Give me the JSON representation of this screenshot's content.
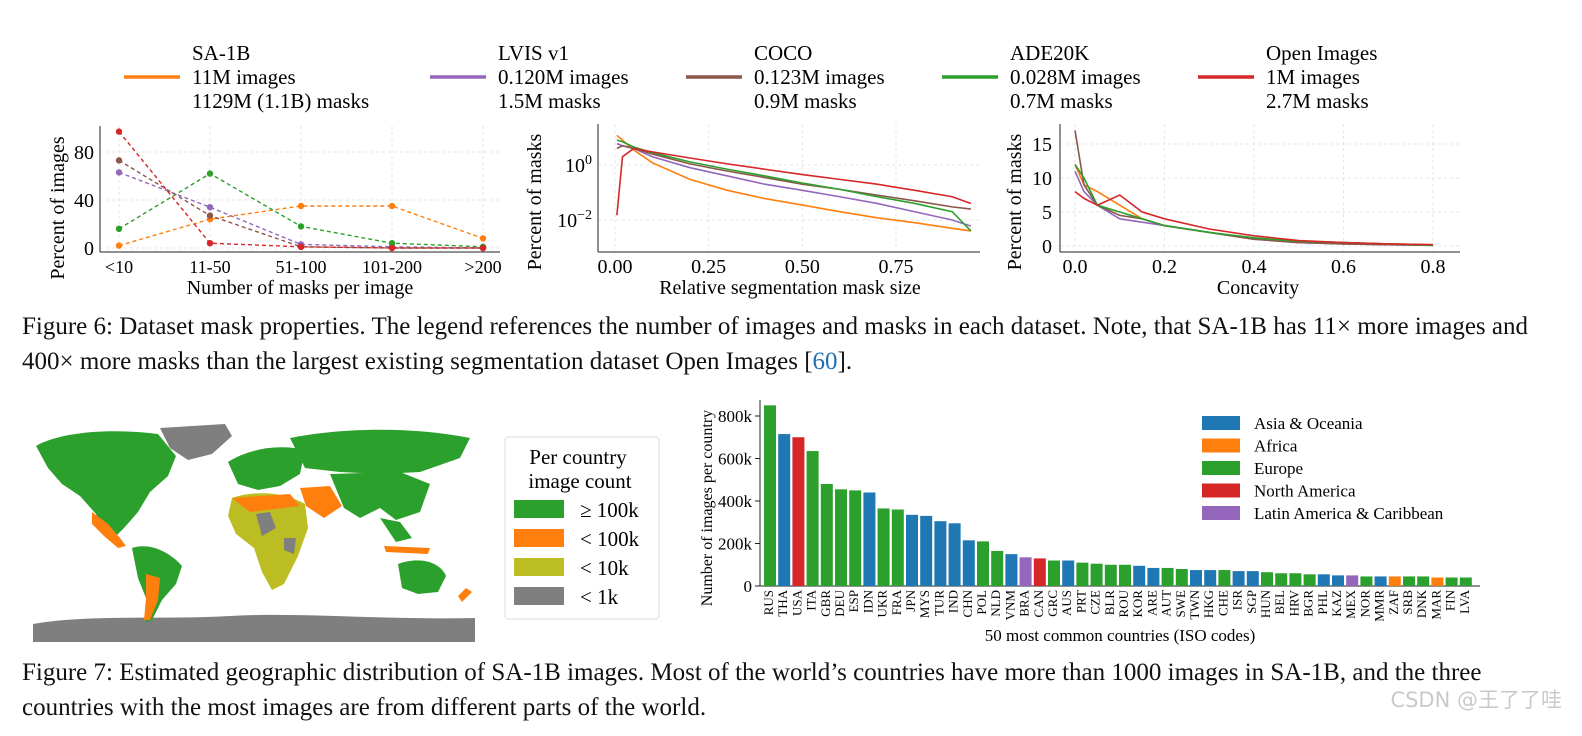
{
  "figure6": {
    "legend": [
      {
        "name": "SA-1B",
        "images": "11M images",
        "masks": "1129M (1.1B) masks",
        "color": "#ff7f0e"
      },
      {
        "name": "LVIS v1",
        "images": "0.120M images",
        "masks": "1.5M masks",
        "color": "#9467bd"
      },
      {
        "name": "COCO",
        "images": "0.123M images",
        "masks": "0.9M masks",
        "color": "#8c564b"
      },
      {
        "name": "ADE20K",
        "images": "0.028M images",
        "masks": "0.7M masks",
        "color": "#2ca02c"
      },
      {
        "name": "Open Images",
        "images": "1M images",
        "masks": "2.7M masks",
        "color": "#d62728"
      }
    ],
    "caption_label": "Figure 6:",
    "caption_text": "Dataset mask properties. The legend references the number of images and masks in each dataset. Note, that SA-1B has 11× more images and 400× more masks than the largest existing segmentation dataset Open Images [",
    "caption_cite": "60",
    "caption_end": "]."
  },
  "chart_data": [
    {
      "type": "line",
      "title": "",
      "xlabel": "Number of masks per image",
      "ylabel": "Percent of images",
      "categories": [
        "<10",
        "11-50",
        "51-100",
        "101-200",
        ">200"
      ],
      "ylim": [
        0,
        100
      ],
      "yticks": [
        "0",
        "40",
        "80"
      ],
      "series": [
        {
          "name": "SA-1B",
          "values": [
            2,
            24,
            35,
            35,
            8
          ]
        },
        {
          "name": "LVIS v1",
          "values": [
            63,
            34,
            3,
            1,
            0
          ]
        },
        {
          "name": "COCO",
          "values": [
            73,
            27,
            1,
            0,
            0
          ]
        },
        {
          "name": "ADE20K",
          "values": [
            16,
            62,
            18,
            4,
            1
          ]
        },
        {
          "name": "Open Images",
          "values": [
            97,
            4,
            1,
            0,
            0
          ]
        }
      ]
    },
    {
      "type": "line",
      "title": "",
      "xlabel": "Relative segmentation mask size",
      "ylabel": "Percent of masks",
      "yscale": "log",
      "xlim": [
        0,
        0.97
      ],
      "ylim": [
        0.001,
        20
      ],
      "xticks": [
        "0.00",
        "0.25",
        "0.50",
        "0.75"
      ],
      "ytick_major": "10",
      "ytick_exps": [
        "0",
        "−2"
      ],
      "series": [
        {
          "name": "SA-1B",
          "x": [
            0.005,
            0.02,
            0.05,
            0.1,
            0.2,
            0.3,
            0.4,
            0.5,
            0.6,
            0.7,
            0.8,
            0.9,
            0.95
          ],
          "y": [
            12,
            8,
            3.5,
            1.2,
            0.3,
            0.12,
            0.06,
            0.035,
            0.02,
            0.012,
            0.008,
            0.005,
            0.004
          ]
        },
        {
          "name": "LVIS v1",
          "x": [
            0.005,
            0.02,
            0.05,
            0.1,
            0.2,
            0.3,
            0.4,
            0.5,
            0.6,
            0.7,
            0.8,
            0.9,
            0.95
          ],
          "y": [
            6,
            5,
            4,
            2,
            0.8,
            0.4,
            0.2,
            0.12,
            0.07,
            0.04,
            0.02,
            0.01,
            0.006
          ]
        },
        {
          "name": "COCO",
          "x": [
            0.005,
            0.02,
            0.05,
            0.1,
            0.2,
            0.3,
            0.4,
            0.5,
            0.6,
            0.7,
            0.8,
            0.9,
            0.95
          ],
          "y": [
            4,
            5,
            4,
            2.5,
            1.1,
            0.6,
            0.35,
            0.2,
            0.13,
            0.08,
            0.05,
            0.03,
            0.025
          ]
        },
        {
          "name": "ADE20K",
          "x": [
            0.005,
            0.02,
            0.05,
            0.1,
            0.2,
            0.3,
            0.4,
            0.5,
            0.6,
            0.7,
            0.8,
            0.9,
            0.95
          ],
          "y": [
            8,
            7,
            4.5,
            2.8,
            1.3,
            0.7,
            0.4,
            0.22,
            0.13,
            0.07,
            0.04,
            0.02,
            0.004
          ]
        },
        {
          "name": "Open Images",
          "x": [
            0.005,
            0.02,
            0.05,
            0.1,
            0.2,
            0.3,
            0.4,
            0.5,
            0.6,
            0.7,
            0.8,
            0.9,
            0.95
          ],
          "y": [
            0.015,
            2,
            4,
            3,
            1.8,
            1.1,
            0.7,
            0.45,
            0.3,
            0.2,
            0.12,
            0.07,
            0.04
          ]
        }
      ]
    },
    {
      "type": "line",
      "title": "",
      "xlabel": "Concavity",
      "ylabel": "Percent of masks",
      "xlim": [
        -0.02,
        0.87
      ],
      "ylim": [
        0,
        17
      ],
      "xticks": [
        "0.0",
        "0.2",
        "0.4",
        "0.6",
        "0.8"
      ],
      "yticks": [
        "0",
        "5",
        "10",
        "15"
      ],
      "series": [
        {
          "name": "SA-1B",
          "x": [
            0,
            0.02,
            0.05,
            0.1,
            0.15,
            0.2,
            0.3,
            0.4,
            0.5,
            0.6,
            0.7,
            0.8
          ],
          "y": [
            12,
            9,
            8,
            6,
            4,
            3,
            2,
            1,
            0.7,
            0.5,
            0.3,
            0.2
          ]
        },
        {
          "name": "LVIS v1",
          "x": [
            0,
            0.02,
            0.05,
            0.1,
            0.15,
            0.2,
            0.3,
            0.4,
            0.5,
            0.6,
            0.7,
            0.8
          ],
          "y": [
            11,
            8,
            6,
            4,
            3.5,
            3,
            2,
            1,
            0.5,
            0.3,
            0.2,
            0.1
          ]
        },
        {
          "name": "COCO",
          "x": [
            0,
            0.02,
            0.05,
            0.1,
            0.15,
            0.2,
            0.3,
            0.4,
            0.5,
            0.6,
            0.7,
            0.8
          ],
          "y": [
            17,
            9,
            6,
            4.5,
            4,
            3,
            2,
            1,
            0.5,
            0.3,
            0.2,
            0.1
          ]
        },
        {
          "name": "ADE20K",
          "x": [
            0,
            0.02,
            0.05,
            0.1,
            0.15,
            0.2,
            0.3,
            0.4,
            0.5,
            0.6,
            0.7,
            0.8
          ],
          "y": [
            12,
            10,
            6,
            5,
            4,
            3,
            2,
            1.2,
            0.7,
            0.5,
            0.3,
            0.1
          ]
        },
        {
          "name": "Open Images",
          "x": [
            0,
            0.02,
            0.05,
            0.1,
            0.15,
            0.2,
            0.3,
            0.4,
            0.5,
            0.6,
            0.7,
            0.8
          ],
          "y": [
            8,
            7,
            6,
            7.5,
            5,
            4,
            2.5,
            1.5,
            0.8,
            0.5,
            0.3,
            0.2
          ]
        }
      ]
    },
    {
      "type": "bar",
      "title": "",
      "xlabel": "50 most common countries (ISO codes)",
      "ylabel": "Number of images per country",
      "ylim": [
        0,
        880000
      ],
      "yticks": [
        "0",
        "200k",
        "400k",
        "600k",
        "800k"
      ],
      "categories": [
        "RUS",
        "THA",
        "USA",
        "ITA",
        "GBR",
        "DEU",
        "ESP",
        "IDN",
        "UKR",
        "FRA",
        "JPN",
        "MYS",
        "TUR",
        "IND",
        "CHN",
        "POL",
        "NLD",
        "VNM",
        "BRA",
        "CAN",
        "GRC",
        "AUS",
        "PRT",
        "CZE",
        "BLR",
        "ROU",
        "KOR",
        "ARE",
        "AUT",
        "SWE",
        "TWN",
        "HKG",
        "CHE",
        "ISR",
        "SGP",
        "HUN",
        "BEL",
        "HRV",
        "BGR",
        "PHL",
        "KAZ",
        "MEX",
        "NOR",
        "MMR",
        "ZAF",
        "SRB",
        "DNK",
        "MAR",
        "FIN",
        "LVA"
      ],
      "values": [
        850000,
        715000,
        700000,
        635000,
        480000,
        455000,
        450000,
        440000,
        365000,
        360000,
        335000,
        330000,
        305000,
        295000,
        215000,
        210000,
        165000,
        150000,
        135000,
        130000,
        120000,
        120000,
        110000,
        105000,
        100000,
        100000,
        95000,
        85000,
        85000,
        80000,
        75000,
        75000,
        75000,
        70000,
        70000,
        65000,
        60000,
        60000,
        55000,
        55000,
        50000,
        50000,
        45000,
        45000,
        45000,
        45000,
        45000,
        40000,
        40000,
        40000
      ],
      "bar_groups": [
        "Europe",
        "Asia & Oceania",
        "North America",
        "Europe",
        "Europe",
        "Europe",
        "Europe",
        "Asia & Oceania",
        "Europe",
        "Europe",
        "Asia & Oceania",
        "Asia & Oceania",
        "Asia & Oceania",
        "Asia & Oceania",
        "Asia & Oceania",
        "Europe",
        "Europe",
        "Asia & Oceania",
        "Latin America & Caribbean",
        "North America",
        "Europe",
        "Asia & Oceania",
        "Europe",
        "Europe",
        "Europe",
        "Europe",
        "Asia & Oceania",
        "Asia & Oceania",
        "Europe",
        "Europe",
        "Asia & Oceania",
        "Asia & Oceania",
        "Europe",
        "Asia & Oceania",
        "Asia & Oceania",
        "Europe",
        "Europe",
        "Europe",
        "Europe",
        "Asia & Oceania",
        "Asia & Oceania",
        "Latin America & Caribbean",
        "Europe",
        "Asia & Oceania",
        "Africa",
        "Europe",
        "Europe",
        "Africa",
        "Europe",
        "Europe"
      ],
      "legend": [
        {
          "name": "Asia & Oceania",
          "color": "#1f77b4"
        },
        {
          "name": "Africa",
          "color": "#ff7f0e"
        },
        {
          "name": "Europe",
          "color": "#2ca02c"
        },
        {
          "name": "North America",
          "color": "#d62728"
        },
        {
          "name": "Latin America & Caribbean",
          "color": "#9467bd"
        }
      ]
    }
  ],
  "figure7": {
    "map_legend_title_1": "Per country",
    "map_legend_title_2": "image count",
    "map_legend": [
      {
        "label": "≥ 100k",
        "color": "#2ca02c"
      },
      {
        "label": "< 100k",
        "color": "#ff7f0e"
      },
      {
        "label": "< 10k",
        "color": "#bcbd22"
      },
      {
        "label": "< 1k",
        "color": "#7f7f7f"
      }
    ],
    "caption_label": "Figure 7:",
    "caption_text": "Estimated geographic distribution of SA-1B images. Most of the world’s countries have more than 1000 images in SA-1B, and the three countries with the most images are from different parts of the world."
  },
  "watermark": "CSDN @王了了哇"
}
